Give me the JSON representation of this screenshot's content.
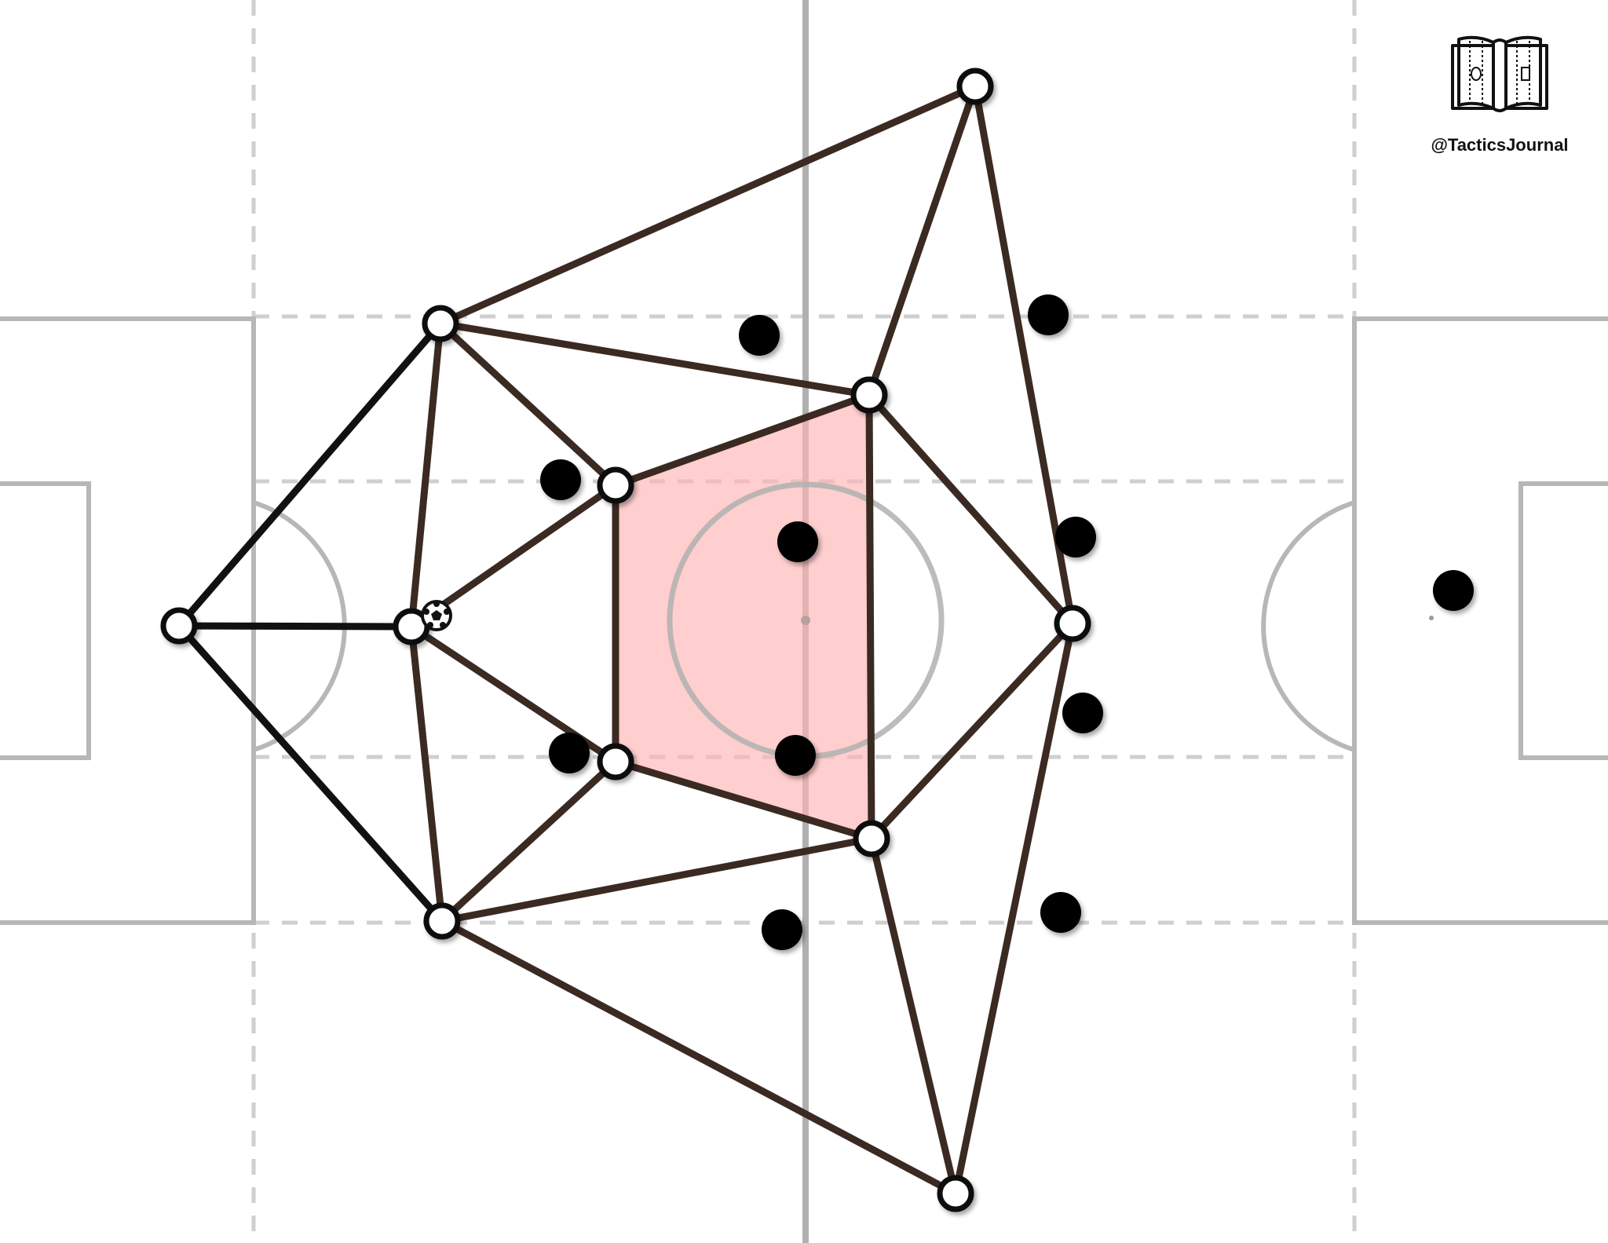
{
  "brand": {
    "handle": "@TacticsJournal",
    "logo_icon": "open-book-pitch-icon"
  },
  "colors": {
    "background": "#ffffff",
    "pitch_lines": "#b7b7b7",
    "zone_dash": "#cfcfcf",
    "halfway": "#b0b0b0",
    "link": "#3a2a22",
    "link_gk": "#111111",
    "player_fill": "#ffffff",
    "player_stroke": "#111111",
    "opponent_fill": "#000000",
    "highlight_fill": "#ffb3b3"
  },
  "team": {
    "players": [
      {
        "id": "gk"
      },
      {
        "id": "lcb"
      },
      {
        "id": "cb"
      },
      {
        "id": "rcb"
      },
      {
        "id": "lcm"
      },
      {
        "id": "rcm"
      },
      {
        "id": "lw"
      },
      {
        "id": "lam"
      },
      {
        "id": "cf"
      },
      {
        "id": "ram"
      },
      {
        "id": "rw"
      }
    ],
    "links": [
      [
        "gk",
        "lcb"
      ],
      [
        "gk",
        "cb"
      ],
      [
        "gk",
        "rcb"
      ],
      [
        "lcb",
        "cb"
      ],
      [
        "cb",
        "rcb"
      ],
      [
        "lcb",
        "lcm"
      ],
      [
        "lcb",
        "lam"
      ],
      [
        "lcb",
        "lw"
      ],
      [
        "cb",
        "lcm"
      ],
      [
        "cb",
        "rcm"
      ],
      [
        "rcb",
        "rcm"
      ],
      [
        "rcb",
        "ram"
      ],
      [
        "rcb",
        "rw"
      ],
      [
        "lcm",
        "rcm"
      ],
      [
        "lcm",
        "lam"
      ],
      [
        "rcm",
        "ram"
      ],
      [
        "lam",
        "ram"
      ],
      [
        "lam",
        "lw"
      ],
      [
        "lam",
        "cf"
      ],
      [
        "ram",
        "cf"
      ],
      [
        "ram",
        "rw"
      ],
      [
        "lw",
        "cf"
      ],
      [
        "rw",
        "cf"
      ]
    ],
    "ball_carrier": "cb",
    "highlight_zone": [
      "lcm",
      "lam",
      "ram",
      "rcm"
    ]
  },
  "opponents": {
    "count": 11,
    "players": [
      {
        "id": "o1"
      },
      {
        "id": "o2"
      },
      {
        "id": "o3"
      },
      {
        "id": "o4"
      },
      {
        "id": "o5"
      },
      {
        "id": "o6"
      },
      {
        "id": "o7"
      },
      {
        "id": "o8"
      },
      {
        "id": "o9"
      },
      {
        "id": "o10"
      },
      {
        "id": "o11"
      }
    ]
  }
}
